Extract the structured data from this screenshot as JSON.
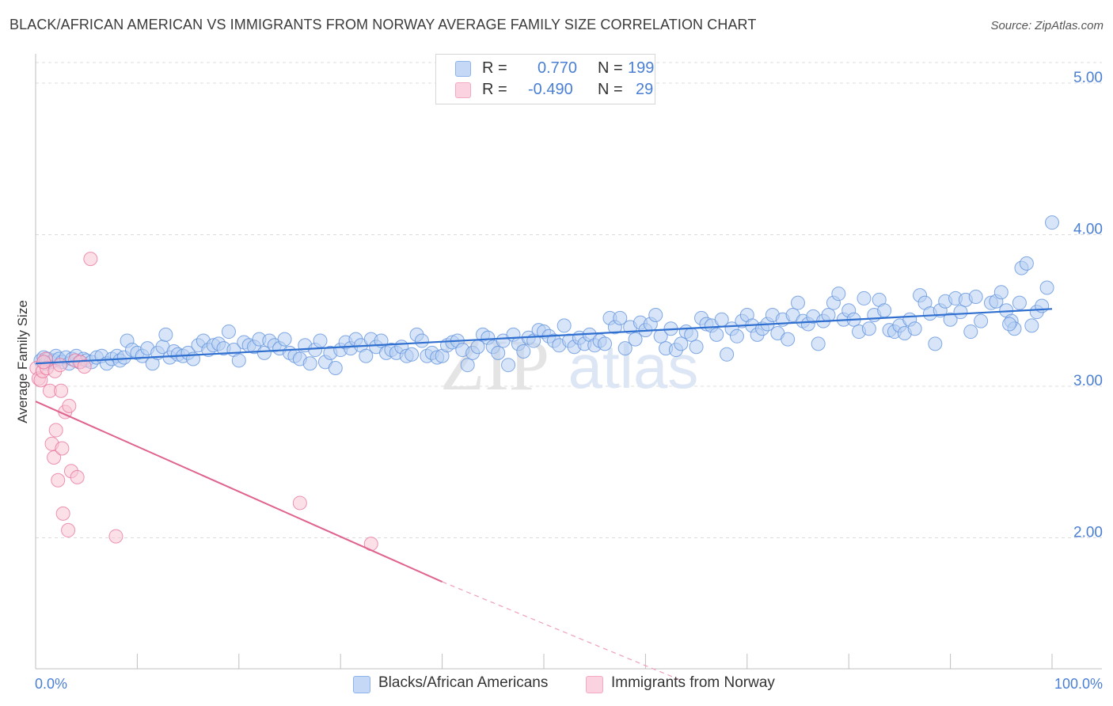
{
  "title": "BLACK/AFRICAN AMERICAN VS IMMIGRANTS FROM NORWAY AVERAGE FAMILY SIZE CORRELATION CHART",
  "source": "Source: ZipAtlas.com",
  "watermark": {
    "zip": "ZIP",
    "atlas": "atlas"
  },
  "legend": {
    "rows": [
      {
        "r_label": "R =",
        "r_value": "0.770",
        "n_label": "N =",
        "n_value": "199",
        "color": "#8cb4ec"
      },
      {
        "r_label": "R =",
        "r_value": "-0.490",
        "n_label": "N =",
        "n_value": "29",
        "color": "#f4a9c2"
      }
    ]
  },
  "bottom_legend": [
    {
      "label": "Blacks/African Americans",
      "color": "#8cb4ec"
    },
    {
      "label": "Immigrants from Norway",
      "color": "#f4a9c2"
    }
  ],
  "chart_data": {
    "type": "scatter",
    "ylabel": "Average Family Size",
    "xlabel": "",
    "x_tick_labels": {
      "min": "0.0%",
      "max": "100.0%"
    },
    "xlim": [
      0,
      100
    ],
    "ylim": [
      1.0,
      5.0
    ],
    "y_ticks": [
      {
        "value": 2.0,
        "label": "2.00"
      },
      {
        "value": 3.0,
        "label": "3.00"
      },
      {
        "value": 4.0,
        "label": "4.00"
      },
      {
        "value": 5.0,
        "label": "5.00"
      }
    ],
    "grid": true,
    "series": [
      {
        "name": "Blacks/African Americans",
        "color": "#5b8fdc",
        "fill": "#b8d0f3",
        "trend": {
          "x": [
            0,
            100
          ],
          "y": [
            3.15,
            3.51
          ]
        },
        "points": [
          [
            0.5,
            3.17
          ],
          [
            0.8,
            3.19
          ],
          [
            1.0,
            3.15
          ],
          [
            1.2,
            3.18
          ],
          [
            1.5,
            3.16
          ],
          [
            1.8,
            3.17
          ],
          [
            2.0,
            3.2
          ],
          [
            2.3,
            3.18
          ],
          [
            2.6,
            3.16
          ],
          [
            3.0,
            3.19
          ],
          [
            3.3,
            3.15
          ],
          [
            3.6,
            3.18
          ],
          [
            4.0,
            3.2
          ],
          [
            4.3,
            3.16
          ],
          [
            4.7,
            3.18
          ],
          [
            5.0,
            3.17
          ],
          [
            5.5,
            3.16
          ],
          [
            6.0,
            3.19
          ],
          [
            6.5,
            3.2
          ],
          [
            7.0,
            3.15
          ],
          [
            7.5,
            3.18
          ],
          [
            8.0,
            3.2
          ],
          [
            8.3,
            3.17
          ],
          [
            8.7,
            3.19
          ],
          [
            9.0,
            3.3
          ],
          [
            9.5,
            3.24
          ],
          [
            10.0,
            3.22
          ],
          [
            10.5,
            3.2
          ],
          [
            11.0,
            3.25
          ],
          [
            11.5,
            3.15
          ],
          [
            12.0,
            3.22
          ],
          [
            12.5,
            3.26
          ],
          [
            12.8,
            3.34
          ],
          [
            13.2,
            3.19
          ],
          [
            13.6,
            3.23
          ],
          [
            14.0,
            3.21
          ],
          [
            14.5,
            3.2
          ],
          [
            15.0,
            3.22
          ],
          [
            15.5,
            3.18
          ],
          [
            16.0,
            3.27
          ],
          [
            16.5,
            3.3
          ],
          [
            17.0,
            3.24
          ],
          [
            17.5,
            3.27
          ],
          [
            18.0,
            3.28
          ],
          [
            18.5,
            3.25
          ],
          [
            19.0,
            3.36
          ],
          [
            19.5,
            3.24
          ],
          [
            20.0,
            3.17
          ],
          [
            20.5,
            3.29
          ],
          [
            21.0,
            3.27
          ],
          [
            21.5,
            3.26
          ],
          [
            22.0,
            3.31
          ],
          [
            22.5,
            3.22
          ],
          [
            23.0,
            3.3
          ],
          [
            23.5,
            3.27
          ],
          [
            24.0,
            3.25
          ],
          [
            24.5,
            3.31
          ],
          [
            25.0,
            3.22
          ],
          [
            25.5,
            3.2
          ],
          [
            26.0,
            3.18
          ],
          [
            26.5,
            3.27
          ],
          [
            27.0,
            3.15
          ],
          [
            27.5,
            3.24
          ],
          [
            28.0,
            3.3
          ],
          [
            28.5,
            3.16
          ],
          [
            29.0,
            3.22
          ],
          [
            29.5,
            3.12
          ],
          [
            30.0,
            3.24
          ],
          [
            30.5,
            3.29
          ],
          [
            31.0,
            3.25
          ],
          [
            31.5,
            3.31
          ],
          [
            32.0,
            3.27
          ],
          [
            32.5,
            3.2
          ],
          [
            33.0,
            3.31
          ],
          [
            33.5,
            3.26
          ],
          [
            34.0,
            3.3
          ],
          [
            34.5,
            3.22
          ],
          [
            35.0,
            3.24
          ],
          [
            35.5,
            3.22
          ],
          [
            36.0,
            3.26
          ],
          [
            36.5,
            3.2
          ],
          [
            37.0,
            3.21
          ],
          [
            37.5,
            3.34
          ],
          [
            38.0,
            3.3
          ],
          [
            38.5,
            3.2
          ],
          [
            39.0,
            3.22
          ],
          [
            39.5,
            3.19
          ],
          [
            40.0,
            3.2
          ],
          [
            40.5,
            3.27
          ],
          [
            41.0,
            3.29
          ],
          [
            41.5,
            3.3
          ],
          [
            42.0,
            3.24
          ],
          [
            42.5,
            3.14
          ],
          [
            43.0,
            3.22
          ],
          [
            43.5,
            3.26
          ],
          [
            44.0,
            3.34
          ],
          [
            44.5,
            3.32
          ],
          [
            45.0,
            3.26
          ],
          [
            45.5,
            3.22
          ],
          [
            46.0,
            3.3
          ],
          [
            46.5,
            3.14
          ],
          [
            47.0,
            3.34
          ],
          [
            47.5,
            3.28
          ],
          [
            48.0,
            3.23
          ],
          [
            48.5,
            3.32
          ],
          [
            49.0,
            3.3
          ],
          [
            49.5,
            3.37
          ],
          [
            50.0,
            3.36
          ],
          [
            50.5,
            3.33
          ],
          [
            51.0,
            3.3
          ],
          [
            51.5,
            3.27
          ],
          [
            52.0,
            3.4
          ],
          [
            52.5,
            3.3
          ],
          [
            53.0,
            3.26
          ],
          [
            53.5,
            3.32
          ],
          [
            54.0,
            3.28
          ],
          [
            54.5,
            3.34
          ],
          [
            55.0,
            3.27
          ],
          [
            55.5,
            3.3
          ],
          [
            56.0,
            3.28
          ],
          [
            56.5,
            3.45
          ],
          [
            57.0,
            3.39
          ],
          [
            57.5,
            3.45
          ],
          [
            58.0,
            3.25
          ],
          [
            58.5,
            3.39
          ],
          [
            59.0,
            3.31
          ],
          [
            59.5,
            3.42
          ],
          [
            60.0,
            3.37
          ],
          [
            60.5,
            3.41
          ],
          [
            61.0,
            3.47
          ],
          [
            61.5,
            3.33
          ],
          [
            62.0,
            3.25
          ],
          [
            62.5,
            3.38
          ],
          [
            63.0,
            3.24
          ],
          [
            63.5,
            3.28
          ],
          [
            64.0,
            3.36
          ],
          [
            64.5,
            3.34
          ],
          [
            65.0,
            3.26
          ],
          [
            65.5,
            3.45
          ],
          [
            66.0,
            3.41
          ],
          [
            66.5,
            3.4
          ],
          [
            67.0,
            3.34
          ],
          [
            67.5,
            3.44
          ],
          [
            68.0,
            3.21
          ],
          [
            68.5,
            3.38
          ],
          [
            69.0,
            3.33
          ],
          [
            69.5,
            3.43
          ],
          [
            70.0,
            3.47
          ],
          [
            70.5,
            3.4
          ],
          [
            71.0,
            3.34
          ],
          [
            71.5,
            3.38
          ],
          [
            72.0,
            3.41
          ],
          [
            72.5,
            3.47
          ],
          [
            73.0,
            3.35
          ],
          [
            73.5,
            3.44
          ],
          [
            74.0,
            3.31
          ],
          [
            74.5,
            3.47
          ],
          [
            75.0,
            3.55
          ],
          [
            75.5,
            3.43
          ],
          [
            76.0,
            3.41
          ],
          [
            76.5,
            3.46
          ],
          [
            77.0,
            3.28
          ],
          [
            77.5,
            3.43
          ],
          [
            78.0,
            3.47
          ],
          [
            78.5,
            3.55
          ],
          [
            79.0,
            3.61
          ],
          [
            79.5,
            3.44
          ],
          [
            80.0,
            3.5
          ],
          [
            80.5,
            3.44
          ],
          [
            81.0,
            3.36
          ],
          [
            81.5,
            3.58
          ],
          [
            82.0,
            3.38
          ],
          [
            82.5,
            3.47
          ],
          [
            83.0,
            3.57
          ],
          [
            83.5,
            3.5
          ],
          [
            84.0,
            3.37
          ],
          [
            84.5,
            3.36
          ],
          [
            85.0,
            3.4
          ],
          [
            85.5,
            3.35
          ],
          [
            86.0,
            3.44
          ],
          [
            86.5,
            3.38
          ],
          [
            87.0,
            3.6
          ],
          [
            87.5,
            3.55
          ],
          [
            88.0,
            3.48
          ],
          [
            88.5,
            3.28
          ],
          [
            89.0,
            3.5
          ],
          [
            89.5,
            3.56
          ],
          [
            90.0,
            3.44
          ],
          [
            90.5,
            3.58
          ],
          [
            91.0,
            3.49
          ],
          [
            91.5,
            3.57
          ],
          [
            92.0,
            3.36
          ],
          [
            92.5,
            3.59
          ],
          [
            93.0,
            3.43
          ],
          [
            94.0,
            3.55
          ],
          [
            94.5,
            3.56
          ],
          [
            95.0,
            3.62
          ],
          [
            95.5,
            3.5
          ],
          [
            96.0,
            3.43
          ],
          [
            96.3,
            3.38
          ],
          [
            97.0,
            3.78
          ],
          [
            97.5,
            3.81
          ],
          [
            98.0,
            3.4
          ],
          [
            98.5,
            3.49
          ],
          [
            99.0,
            3.53
          ],
          [
            99.5,
            3.65
          ],
          [
            100.0,
            4.08
          ],
          [
            96.8,
            3.55
          ],
          [
            95.8,
            3.41
          ]
        ]
      },
      {
        "name": "Immigrants from Norway",
        "color": "#e8709a",
        "fill": "#f8c6d6",
        "trend": {
          "x": [
            0,
            40
          ],
          "y": [
            2.9,
            1.71
          ],
          "dashed_to": {
            "x": 63.5,
            "y": 1.06
          }
        },
        "points": [
          [
            0.1,
            3.12
          ],
          [
            0.3,
            3.05
          ],
          [
            0.5,
            3.04
          ],
          [
            0.7,
            3.1
          ],
          [
            1.0,
            3.18
          ],
          [
            1.1,
            3.12
          ],
          [
            1.4,
            2.97
          ],
          [
            1.6,
            2.62
          ],
          [
            1.8,
            2.53
          ],
          [
            1.9,
            3.1
          ],
          [
            2.0,
            2.71
          ],
          [
            2.2,
            2.38
          ],
          [
            2.4,
            3.14
          ],
          [
            2.5,
            2.97
          ],
          [
            2.6,
            2.59
          ],
          [
            2.7,
            2.16
          ],
          [
            2.9,
            2.83
          ],
          [
            3.2,
            2.05
          ],
          [
            3.3,
            2.87
          ],
          [
            3.5,
            2.44
          ],
          [
            3.9,
            3.17
          ],
          [
            4.1,
            2.4
          ],
          [
            4.4,
            3.16
          ],
          [
            4.8,
            3.13
          ],
          [
            5.4,
            3.84
          ],
          [
            7.9,
            2.01
          ],
          [
            26.0,
            2.23
          ],
          [
            33.0,
            1.96
          ],
          [
            0.8,
            3.16
          ]
        ]
      }
    ]
  }
}
